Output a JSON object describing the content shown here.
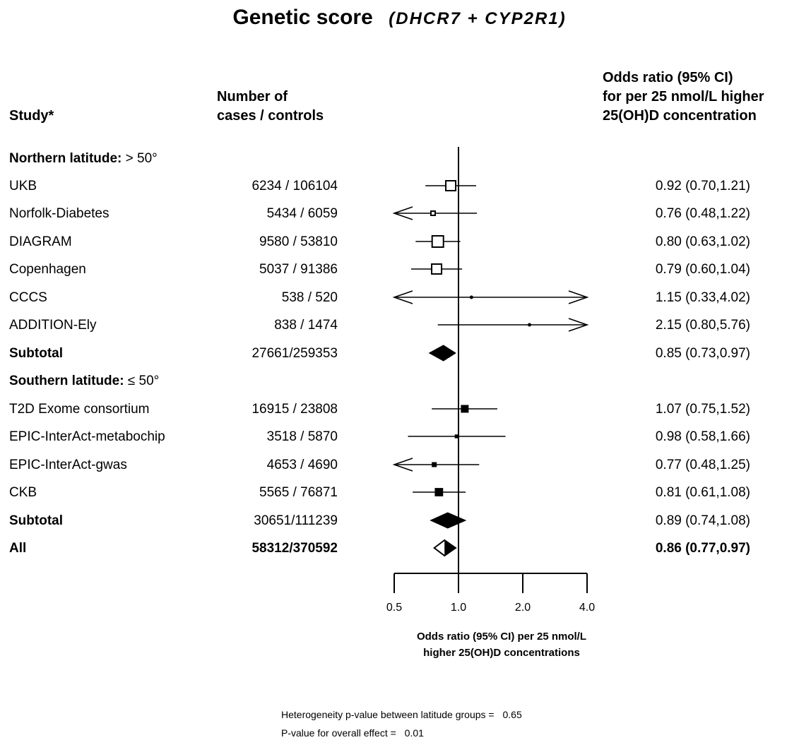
{
  "title": {
    "main": "Genetic score",
    "genes": "(DHCR7 + CYP2R1)"
  },
  "headers": {
    "study": "Study*",
    "cases": [
      "Number of",
      "cases / controls"
    ],
    "or": [
      "Odds ratio (95% CI)",
      "for per 25 nmol/L higher",
      "25(OH)D concentration"
    ]
  },
  "sections": [
    {
      "label": "Northern latitude:",
      "threshold": "> 50°"
    },
    {
      "label": "Southern latitude:",
      "threshold": "≤ 50°"
    }
  ],
  "rows": [
    {
      "name": "UKB",
      "cases": "6234 / 106104",
      "or_text": "0.92 (0.70,1.21)"
    },
    {
      "name": "Norfolk-Diabetes",
      "cases": "5434 / 6059",
      "or_text": "0.76 (0.48,1.22)"
    },
    {
      "name": "DIAGRAM",
      "cases": "9580 / 53810",
      "or_text": "0.80 (0.63,1.02)"
    },
    {
      "name": "Copenhagen",
      "cases": "5037 / 91386",
      "or_text": "0.79 (0.60,1.04)"
    },
    {
      "name": "CCCS",
      "cases": "538 / 520",
      "or_text": "1.15 (0.33,4.02)"
    },
    {
      "name": "ADDITION-Ely",
      "cases": "838 / 1474",
      "or_text": "2.15 (0.80,5.76)"
    },
    {
      "name": "Subtotal",
      "cases": "27661/259353",
      "or_text": "0.85 (0.73,0.97)"
    },
    {
      "name": "T2D Exome consortium",
      "cases": "16915 / 23808",
      "or_text": "1.07 (0.75,1.52)"
    },
    {
      "name": "EPIC-InterAct-metabochip",
      "cases": "3518 / 5870",
      "or_text": "0.98 (0.58,1.66)"
    },
    {
      "name": "EPIC-InterAct-gwas",
      "cases": "4653 / 4690",
      "or_text": "0.77 (0.48,1.25)"
    },
    {
      "name": "CKB",
      "cases": "5565 / 76871",
      "or_text": "0.81 (0.61,1.08)"
    },
    {
      "name": "Subtotal",
      "cases": "30651/111239",
      "or_text": "0.89 (0.74,1.08)"
    },
    {
      "name": "All",
      "cases": "58312/370592",
      "or_text": "0.86 (0.77,0.97)"
    }
  ],
  "axis": {
    "ticks": [
      "0.5",
      "1.0",
      "2.0",
      "4.0"
    ],
    "xlabel": [
      "Odds ratio (95% CI) per 25 nmol/L",
      "higher 25(OH)D concentrations"
    ]
  },
  "footer": {
    "heterogeneity_label": "Heterogeneity p-value between latitude groups =",
    "heterogeneity_value": "0.65",
    "overall_label": "P-value for overall effect =",
    "overall_value": "0.01"
  },
  "chart_data": {
    "type": "forest",
    "x_scale": "log",
    "xlim": [
      0.5,
      4.0
    ],
    "reference_line": 1.0,
    "estimates": [
      {
        "name": "UKB",
        "or": 0.92,
        "lo": 0.7,
        "hi": 1.21,
        "marker": "open-square",
        "weight": 3
      },
      {
        "name": "Norfolk-Diabetes",
        "or": 0.76,
        "lo": 0.48,
        "hi": 1.22,
        "marker": "open-square",
        "weight": 1
      },
      {
        "name": "DIAGRAM",
        "or": 0.8,
        "lo": 0.63,
        "hi": 1.02,
        "marker": "open-square",
        "weight": 3.5
      },
      {
        "name": "Copenhagen",
        "or": 0.79,
        "lo": 0.6,
        "hi": 1.04,
        "marker": "open-square",
        "weight": 3
      },
      {
        "name": "CCCS",
        "or": 1.15,
        "lo": 0.33,
        "hi": 4.02,
        "marker": "dot",
        "weight": 0.6
      },
      {
        "name": "ADDITION-Ely",
        "or": 2.15,
        "lo": 0.8,
        "hi": 5.76,
        "marker": "dot",
        "weight": 0.6
      },
      {
        "name": "Subtotal",
        "or": 0.85,
        "lo": 0.73,
        "hi": 0.97,
        "marker": "filled-diamond"
      },
      {
        "name": "T2D Exome consortium",
        "or": 1.07,
        "lo": 0.75,
        "hi": 1.52,
        "marker": "filled-square",
        "weight": 2
      },
      {
        "name": "EPIC-InterAct-metabochip",
        "or": 0.98,
        "lo": 0.58,
        "hi": 1.66,
        "marker": "filled-square",
        "weight": 0.6
      },
      {
        "name": "EPIC-InterAct-gwas",
        "or": 0.77,
        "lo": 0.48,
        "hi": 1.25,
        "marker": "filled-square",
        "weight": 1
      },
      {
        "name": "CKB",
        "or": 0.81,
        "lo": 0.61,
        "hi": 1.08,
        "marker": "filled-square",
        "weight": 2.2
      },
      {
        "name": "Subtotal",
        "or": 0.89,
        "lo": 0.74,
        "hi": 1.08,
        "marker": "filled-diamond"
      },
      {
        "name": "All",
        "or": 0.86,
        "lo": 0.77,
        "hi": 0.97,
        "marker": "open-diamond-halffilled"
      }
    ]
  }
}
